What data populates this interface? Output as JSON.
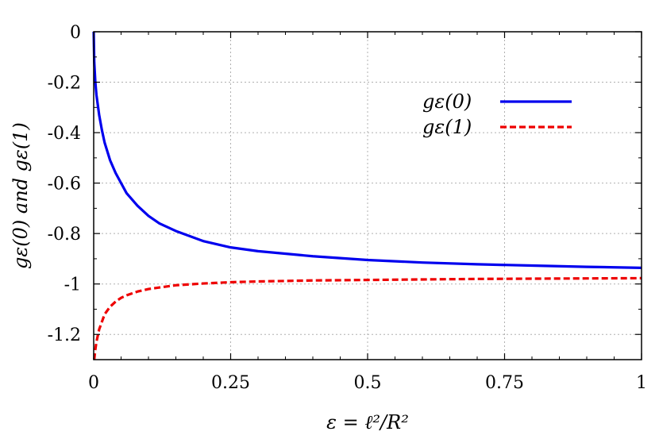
{
  "chart_data": {
    "type": "line",
    "title": "",
    "xlabel": "ε = ℓ²/R²",
    "ylabel": "gε(0) and gε(1)",
    "xlim": [
      0,
      1
    ],
    "ylim": [
      -1.3,
      0
    ],
    "xticks": [
      0,
      0.25,
      0.5,
      0.75,
      1
    ],
    "xtick_labels": [
      "0",
      "0.25",
      "0.5",
      "0.75",
      "1"
    ],
    "yticks": [
      0,
      -0.2,
      -0.4,
      -0.6,
      -0.8,
      -1,
      -1.2
    ],
    "ytick_labels": [
      "0",
      "-0.2",
      "-0.4",
      "-0.6",
      "-0.8",
      "-1",
      "-1.2"
    ],
    "grid": true,
    "legend_position": "top-right",
    "series": [
      {
        "name": "gε(0)",
        "color": "#0000ee",
        "style": "solid",
        "x": [
          0,
          0.001,
          0.003,
          0.005,
          0.01,
          0.015,
          0.02,
          0.03,
          0.04,
          0.05,
          0.06,
          0.08,
          0.1,
          0.12,
          0.15,
          0.2,
          0.25,
          0.3,
          0.4,
          0.5,
          0.6,
          0.7,
          0.8,
          0.9,
          1.0
        ],
        "y": [
          0,
          -0.12,
          -0.2,
          -0.25,
          -0.33,
          -0.39,
          -0.44,
          -0.51,
          -0.56,
          -0.6,
          -0.64,
          -0.69,
          -0.73,
          -0.76,
          -0.79,
          -0.83,
          -0.855,
          -0.87,
          -0.89,
          -0.905,
          -0.915,
          -0.922,
          -0.927,
          -0.932,
          -0.936
        ]
      },
      {
        "name": "gε(1)",
        "color": "#ee0000",
        "style": "dashed",
        "x": [
          0.001,
          0.003,
          0.005,
          0.01,
          0.015,
          0.02,
          0.03,
          0.04,
          0.05,
          0.06,
          0.08,
          0.1,
          0.15,
          0.2,
          0.25,
          0.3,
          0.4,
          0.5,
          0.6,
          0.7,
          0.8,
          0.9,
          1.0
        ],
        "y": [
          -1.3,
          -1.26,
          -1.23,
          -1.18,
          -1.15,
          -1.12,
          -1.09,
          -1.07,
          -1.055,
          -1.045,
          -1.03,
          -1.02,
          -1.005,
          -0.998,
          -0.993,
          -0.99,
          -0.986,
          -0.984,
          -0.982,
          -0.98,
          -0.979,
          -0.978,
          -0.977
        ]
      }
    ]
  }
}
